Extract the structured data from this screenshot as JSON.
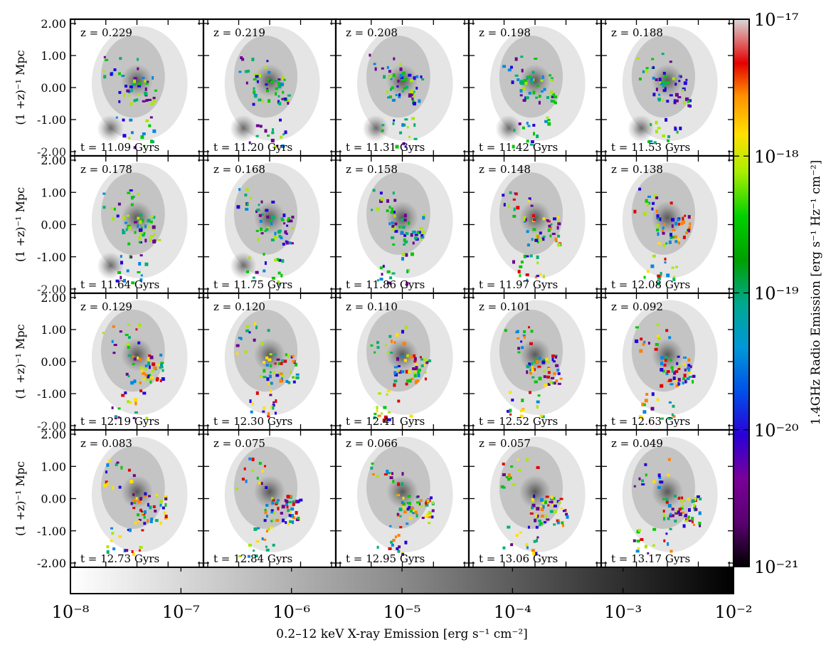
{
  "chart_data": {
    "type": "heatmap",
    "description_grid": {
      "rows": 4,
      "cols": 5
    },
    "panels": [
      {
        "z": "z = 0.229",
        "t": "t = 11.09 Gyrs"
      },
      {
        "z": "z = 0.219",
        "t": "t = 11.20 Gyrs"
      },
      {
        "z": "z = 0.208",
        "t": "t = 11.31 Gyrs"
      },
      {
        "z": "z = 0.198",
        "t": "t = 11.42 Gyrs"
      },
      {
        "z": "z = 0.188",
        "t": "t = 11.53 Gyrs"
      },
      {
        "z": "z = 0.178",
        "t": "t = 11.64 Gyrs"
      },
      {
        "z": "z = 0.168",
        "t": "t = 11.75 Gyrs"
      },
      {
        "z": "z = 0.158",
        "t": "t = 11.86 Gyrs"
      },
      {
        "z": "z = 0.148",
        "t": "t = 11.97 Gyrs"
      },
      {
        "z": "z = 0.138",
        "t": "t = 12.08 Gyrs"
      },
      {
        "z": "z = 0.129",
        "t": "t = 12.19 Gyrs"
      },
      {
        "z": "z = 0.120",
        "t": "t = 12.30 Gyrs"
      },
      {
        "z": "z = 0.110",
        "t": "t = 12.41 Gyrs"
      },
      {
        "z": "z = 0.101",
        "t": "t = 12.52 Gyrs"
      },
      {
        "z": "z = 0.092",
        "t": "t = 12.63 Gyrs"
      },
      {
        "z": "z = 0.083",
        "t": "t = 12.73 Gyrs"
      },
      {
        "z": "z = 0.075",
        "t": "t = 12.84 Gyrs"
      },
      {
        "z": "z = 0.066",
        "t": "t = 12.95 Gyrs"
      },
      {
        "z": "z = 0.057",
        "t": "t = 13.06 Gyrs"
      },
      {
        "z": "z = 0.049",
        "t": "t = 13.17 Gyrs"
      }
    ],
    "ylabel": "(1 +z)⁻¹ Mpc",
    "yticks": [
      "2.00",
      "1.00",
      "0.00",
      "-1.00",
      "-2.00"
    ],
    "ylim": [
      -2.0,
      2.0
    ],
    "xray_colorbar": {
      "label": "0.2–12 keV X-ray Emission [erg s⁻¹ cm⁻²]",
      "ticks": [
        "10⁻⁸",
        "10⁻⁷",
        "10⁻⁶",
        "10⁻⁵",
        "10⁻⁴",
        "10⁻³",
        "10⁻²"
      ],
      "range": [
        1e-08,
        0.01
      ],
      "colormap": [
        "#ffffff",
        "#000000"
      ]
    },
    "radio_colorbar": {
      "label": "1.4GHz Radio Emission [erg s⁻¹ Hz⁻¹ cm⁻²]",
      "ticks": [
        "10⁻¹⁷",
        "10⁻¹⁸",
        "10⁻¹⁹",
        "10⁻²⁰",
        "10⁻²¹"
      ],
      "range": [
        1e-21,
        1e-17
      ],
      "colormap": [
        "#000000",
        "#7a0090",
        "#2200dd",
        "#0080e0",
        "#00b070",
        "#00c800",
        "#a8e800",
        "#ffe000",
        "#ff8000",
        "#e00000",
        "#cccccc"
      ]
    }
  }
}
